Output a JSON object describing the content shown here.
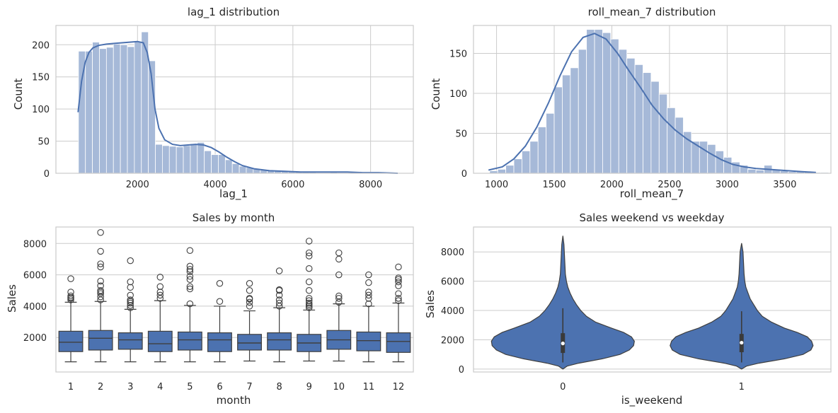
{
  "chart_data": [
    {
      "type": "histogram",
      "title": "lag_1 distribution",
      "xlabel": "lag_1",
      "ylabel": "Count",
      "xlim": [
        -100,
        9100
      ],
      "ylim": [
        0,
        230
      ],
      "xticks": [
        2000,
        4000,
        6000,
        8000
      ],
      "yticks": [
        0,
        50,
        100,
        150,
        200
      ],
      "grid": true,
      "color": "#4c72b0",
      "bar_alpha": 0.5,
      "bins": {
        "start": 480,
        "width": 180,
        "counts": [
          190,
          190,
          204,
          194,
          196,
          201,
          200,
          197,
          205,
          220,
          175,
          45,
          43,
          42,
          41,
          43,
          46,
          48,
          35,
          29,
          29,
          21,
          15,
          11,
          9,
          7,
          5,
          4,
          4,
          3,
          3,
          2,
          2,
          2,
          1,
          1,
          2,
          1,
          1,
          1,
          1,
          1,
          1,
          1,
          1,
          1
        ]
      },
      "kde": {
        "x": [
          470,
          560,
          650,
          750,
          850,
          1000,
          1200,
          1400,
          1600,
          1800,
          2000,
          2150,
          2250,
          2350,
          2450,
          2550,
          2700,
          2900,
          3100,
          3300,
          3500,
          3700,
          3900,
          4100,
          4300,
          4500,
          4700,
          5000,
          5400,
          5800,
          6200,
          6600,
          7000,
          7400,
          7800,
          8200,
          8700
        ],
        "y": [
          95,
          143,
          172,
          188,
          195,
          199,
          201,
          202,
          203,
          204,
          205,
          203,
          188,
          155,
          100,
          70,
          52,
          45,
          43,
          44,
          45,
          44,
          40,
          33,
          25,
          18,
          12,
          7,
          4,
          3,
          2,
          2,
          2,
          2,
          1,
          1,
          0
        ]
      }
    },
    {
      "type": "histogram",
      "title": "roll_mean_7 distribution",
      "xlabel": "roll_mean_7",
      "ylabel": "Count",
      "xlim": [
        800,
        3900
      ],
      "ylim": [
        0,
        185
      ],
      "xticks": [
        1000,
        1500,
        2000,
        2500,
        3000,
        3500
      ],
      "yticks": [
        0,
        50,
        100,
        150
      ],
      "grid": true,
      "color": "#4c72b0",
      "bar_alpha": 0.5,
      "bins": {
        "start": 940,
        "width": 70,
        "counts": [
          3,
          5,
          10,
          18,
          28,
          40,
          58,
          75,
          108,
          123,
          132,
          155,
          180,
          180,
          176,
          168,
          155,
          144,
          136,
          126,
          115,
          99,
          82,
          70,
          52,
          40,
          40,
          36,
          28,
          20,
          14,
          10,
          5,
          4,
          10,
          5,
          3,
          2,
          2,
          2,
          1,
          1
        ]
      },
      "kde": {
        "x": [
          930,
          1050,
          1150,
          1250,
          1350,
          1450,
          1550,
          1650,
          1750,
          1850,
          1950,
          2050,
          2150,
          2250,
          2350,
          2450,
          2550,
          2650,
          2750,
          2850,
          2950,
          3050,
          3150,
          3250,
          3350,
          3450,
          3550,
          3650,
          3770
        ],
        "y": [
          4,
          8,
          18,
          34,
          58,
          88,
          122,
          152,
          170,
          175,
          168,
          150,
          128,
          107,
          85,
          68,
          54,
          43,
          34,
          25,
          17,
          11,
          8,
          6,
          5,
          4,
          3,
          2,
          1
        ]
      }
    },
    {
      "type": "box",
      "title": "Sales by month",
      "xlabel": "month",
      "ylabel": "Sales",
      "categories": [
        "1",
        "2",
        "3",
        "4",
        "5",
        "6",
        "7",
        "8",
        "9",
        "10",
        "11",
        "12"
      ],
      "ylim": [
        -200,
        9050
      ],
      "yticks": [
        2000,
        4000,
        6000,
        8000
      ],
      "grid": true,
      "color": "#4c72b0",
      "boxes": [
        {
          "whislo": 450,
          "q1": 1100,
          "med": 1700,
          "q3": 2400,
          "whishi": 4250,
          "fliers": [
            4400,
            4500,
            4550,
            4650,
            4900,
            5750
          ]
        },
        {
          "whislo": 450,
          "q1": 1200,
          "med": 1950,
          "q3": 2450,
          "whishi": 4300,
          "fliers": [
            4400,
            4600,
            4800,
            4900,
            5000,
            5300,
            5600,
            6500,
            6700,
            7500,
            8700
          ]
        },
        {
          "whislo": 450,
          "q1": 1250,
          "med": 1850,
          "q3": 2300,
          "whishi": 3800,
          "fliers": [
            3900,
            4050,
            4200,
            4300,
            4400,
            4700,
            5200,
            5550,
            6900
          ]
        },
        {
          "whislo": 450,
          "q1": 1100,
          "med": 1600,
          "q3": 2400,
          "whishi": 4350,
          "fliers": [
            4500,
            4700,
            4900,
            5250,
            5850
          ]
        },
        {
          "whislo": 450,
          "q1": 1200,
          "med": 1850,
          "q3": 2350,
          "whishi": 4050,
          "fliers": [
            4150,
            5100,
            5250,
            5700,
            5900,
            6200,
            6350,
            6550,
            7550
          ]
        },
        {
          "whislo": 450,
          "q1": 1100,
          "med": 1850,
          "q3": 2300,
          "whishi": 4000,
          "fliers": [
            4300,
            5450
          ]
        },
        {
          "whislo": 500,
          "q1": 1200,
          "med": 1650,
          "q3": 2200,
          "whishi": 3700,
          "fliers": [
            4000,
            4250,
            4450,
            4500,
            5000,
            5450
          ]
        },
        {
          "whislo": 450,
          "q1": 1200,
          "med": 1850,
          "q3": 2300,
          "whishi": 3900,
          "fliers": [
            4000,
            4200,
            4400,
            4700,
            5000,
            5050,
            6250
          ]
        },
        {
          "whislo": 500,
          "q1": 1100,
          "med": 1650,
          "q3": 2200,
          "whishi": 3750,
          "fliers": [
            3900,
            4000,
            4100,
            4200,
            4350,
            4500,
            5000,
            5550,
            6400,
            7200,
            7400,
            8150
          ]
        },
        {
          "whislo": 500,
          "q1": 1250,
          "med": 1850,
          "q3": 2450,
          "whishi": 4150,
          "fliers": [
            4250,
            4500,
            4650,
            6000,
            7000,
            7400
          ]
        },
        {
          "whislo": 450,
          "q1": 1150,
          "med": 1800,
          "q3": 2350,
          "whishi": 4000,
          "fliers": [
            4150,
            4500,
            4700,
            4900,
            5500,
            6000
          ]
        },
        {
          "whislo": 450,
          "q1": 1050,
          "med": 1750,
          "q3": 2300,
          "whishi": 4200,
          "fliers": [
            4350,
            4500,
            4800,
            5300,
            5550,
            5700,
            5800,
            6500
          ]
        }
      ]
    },
    {
      "type": "violin",
      "title": "Sales weekend vs weekday",
      "xlabel": "is_weekend",
      "ylabel": "Sales",
      "categories": [
        "0",
        "1"
      ],
      "ylim": [
        -200,
        9700
      ],
      "yticks": [
        0,
        2000,
        4000,
        6000,
        8000
      ],
      "grid": true,
      "color": "#4c72b0",
      "violins": [
        {
          "y": [
            0,
            200,
            400,
            700,
            1000,
            1300,
            1600,
            1900,
            2200,
            2500,
            2800,
            3200,
            3600,
            4000,
            4400,
            4800,
            5200,
            5600,
            6000,
            6500,
            7000,
            7500,
            8000,
            8500,
            9100
          ],
          "density": [
            0,
            0.06,
            0.22,
            0.55,
            0.8,
            0.93,
            0.99,
            1.0,
            0.96,
            0.85,
            0.68,
            0.46,
            0.33,
            0.25,
            0.19,
            0.14,
            0.1,
            0.07,
            0.05,
            0.035,
            0.03,
            0.025,
            0.02,
            0.015,
            0
          ],
          "q1": 1100,
          "med": 1750,
          "q3": 2450,
          "whislo": 450,
          "whishi": 4150
        },
        {
          "y": [
            0,
            200,
            400,
            700,
            1000,
            1300,
            1600,
            1900,
            2200,
            2500,
            2800,
            3200,
            3600,
            4000,
            4400,
            4800,
            5200,
            5600,
            6000,
            6500,
            7000,
            7500,
            8000,
            8600
          ],
          "density": [
            0,
            0.07,
            0.24,
            0.6,
            0.86,
            0.97,
            1.0,
            0.98,
            0.92,
            0.78,
            0.6,
            0.42,
            0.29,
            0.22,
            0.17,
            0.12,
            0.09,
            0.06,
            0.045,
            0.035,
            0.03,
            0.025,
            0.02,
            0
          ],
          "q1": 1150,
          "med": 1800,
          "q3": 2400,
          "whislo": 450,
          "whishi": 3950
        }
      ]
    }
  ]
}
